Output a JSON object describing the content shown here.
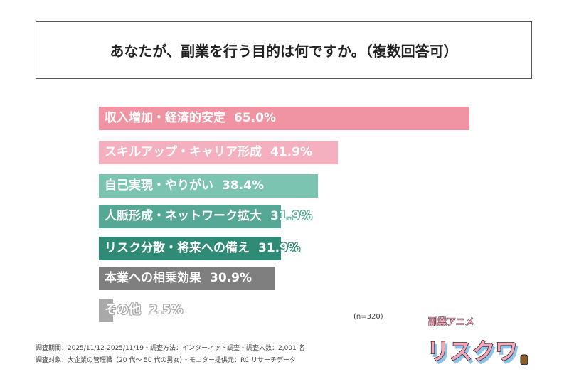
{
  "chart_data": {
    "type": "bar",
    "orientation": "horizontal",
    "title": "あなたが、副業を行う目的は何ですか。（複数回答可）",
    "categories": [
      "収入増加・経済的安定",
      "スキルアップ・キャリア形成",
      "自己実現・やりがい",
      "人脈形成・ネットワーク拡大",
      "リスク分散・将来への備え",
      "本業への相乗効果",
      "その他"
    ],
    "values": [
      65.0,
      41.9,
      38.4,
      31.9,
      31.9,
      30.9,
      2.5
    ],
    "value_labels": [
      "65.0%",
      "41.9%",
      "38.4%",
      "31.9%",
      "31.9%",
      "30.9%",
      "2.5%"
    ],
    "colors": [
      "#f093a2",
      "#f5b0bf",
      "#7cc4b2",
      "#55a895",
      "#2f8a76",
      "#7f7f7f",
      "#a9a9a9"
    ],
    "xlim": [
      0,
      65
    ],
    "grid": false,
    "sample_note": "(n=320)"
  },
  "footer": {
    "line1": "調査期間：2025/11/12-2025/11/19・調査方法：インターネット調査・調査人数：2,001 名",
    "line2": "調査対象：大企業の管理職（20 代～ 50 代の男女）・モニター提供元：RC リサーチデータ"
  },
  "logo": {
    "small": "副業アニメ",
    "big": "リスクワ"
  }
}
